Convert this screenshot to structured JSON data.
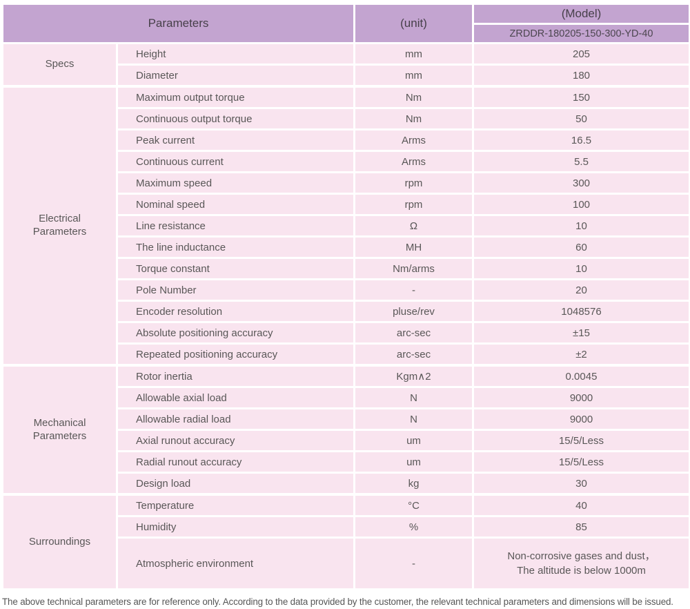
{
  "table": {
    "header": {
      "parameters_label": "Parameters",
      "unit_label": "(unit)",
      "model_label": "(Model)",
      "model_value": "ZRDDR-180205-150-300-YD-40"
    },
    "groups": [
      {
        "category": "Specs",
        "rows": [
          {
            "param": "Height",
            "unit": "mm",
            "value": "205"
          },
          {
            "param": "Diameter",
            "unit": "mm",
            "value": "180"
          }
        ]
      },
      {
        "category": "Electrical\nParameters",
        "rows": [
          {
            "param": "Maximum output torque",
            "unit": "Nm",
            "value": "150"
          },
          {
            "param": "Continuous output torque",
            "unit": "Nm",
            "value": "50"
          },
          {
            "param": "Peak current",
            "unit": "Arms",
            "value": "16.5"
          },
          {
            "param": "Continuous current",
            "unit": "Arms",
            "value": "5.5"
          },
          {
            "param": "Maximum speed",
            "unit": "rpm",
            "value": "300"
          },
          {
            "param": "Nominal speed",
            "unit": "rpm",
            "value": "100"
          },
          {
            "param": "Line resistance",
            "unit": "Ω",
            "value": "10"
          },
          {
            "param": "The line inductance",
            "unit": "MH",
            "value": "60"
          },
          {
            "param": "Torque constant",
            "unit": "Nm/arms",
            "value": "10"
          },
          {
            "param": "Pole Number",
            "unit": "-",
            "value": "20"
          },
          {
            "param": "Encoder resolution",
            "unit": "pluse/rev",
            "value": "1048576"
          },
          {
            "param": "Absolute positioning accuracy",
            "unit": "arc-sec",
            "value": "±15"
          },
          {
            "param": "Repeated positioning accuracy",
            "unit": "arc-sec",
            "value": "±2"
          }
        ]
      },
      {
        "category": "Mechanical\nParameters",
        "rows": [
          {
            "param": "Rotor inertia",
            "unit": "Kgm∧2",
            "value": "0.0045"
          },
          {
            "param": "Allowable axial load",
            "unit": "N",
            "value": "9000"
          },
          {
            "param": "Allowable radial load",
            "unit": "N",
            "value": "9000"
          },
          {
            "param": "Axial runout accuracy",
            "unit": "um",
            "value": "15/5/Less"
          },
          {
            "param": "Radial runout accuracy",
            "unit": "um",
            "value": "15/5/Less"
          },
          {
            "param": "Design load",
            "unit": "kg",
            "value": "30"
          }
        ]
      },
      {
        "category": "Surroundings",
        "rows": [
          {
            "param": "Temperature",
            "unit": "°C",
            "value": "40"
          },
          {
            "param": "Humidity",
            "unit": "%",
            "value": "85"
          },
          {
            "param": "Atmospheric environment",
            "unit": "-",
            "value": "Non-corrosive gases and dust，\nThe altitude is below 1000m"
          }
        ]
      }
    ],
    "footnote": "The above technical parameters are for reference only. According to the data provided by the customer, the relevant technical parameters and dimensions will be issued.",
    "colors": {
      "header_bg": "#c3a4d0",
      "row_bg": "#f9e4ef",
      "border": "#ffffff"
    }
  }
}
